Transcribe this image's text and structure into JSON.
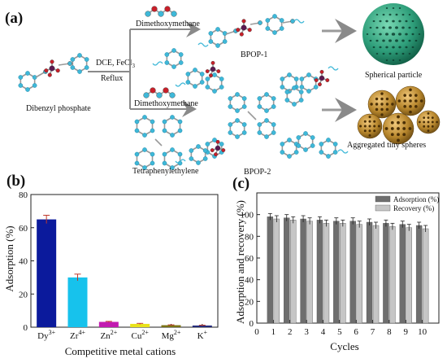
{
  "panels": {
    "a": {
      "label": "(a)",
      "reaction": {
        "reactant": "Dibenzyl phosphate",
        "conditions_line1": "DCE, FeCl",
        "conditions_sub": "3",
        "conditions_line2": "Reflux",
        "reagent_top": "Dimethoxymethane",
        "reagent_bottom": "Dimethoxymethane",
        "linker_bottom": "Tetraphenylethylene",
        "product_top": "BPOP-1",
        "product_bottom": "BPOP-2",
        "morph_top": "Spherical particle",
        "morph_bottom": "Aggregated tiny spheres"
      },
      "colors": {
        "carbon": "#3fb8d8",
        "phosphorus": "#5b1a52",
        "oxygen": "#c8202a",
        "sphere": "#2e9e7a",
        "aggregate": "#b7862c"
      }
    },
    "b": {
      "label": "(b)",
      "chart_data": {
        "type": "bar",
        "categories": [
          "Dy",
          "Zr",
          "Zn",
          "Cu",
          "Mg",
          "K"
        ],
        "category_sup": [
          "3+",
          "4+",
          "2+",
          "2+",
          "2+",
          "+"
        ],
        "values": [
          65,
          30,
          3.2,
          2.0,
          1.2,
          1.0
        ],
        "errors": [
          2.5,
          2.0,
          0.3,
          0.3,
          0.2,
          0.2
        ],
        "colors": [
          "#0b1a9c",
          "#17c2ec",
          "#c21bb0",
          "#e9e21a",
          "#7a7214",
          "#242a7a"
        ],
        "xlabel": "Competitive metal cations",
        "ylabel": "Adsorption (%)",
        "ylim": [
          0,
          80
        ],
        "yticks": [
          0,
          20,
          40,
          60,
          80
        ]
      }
    },
    "c": {
      "label": "(c)",
      "chart_data": {
        "type": "bar",
        "x": [
          1,
          2,
          3,
          4,
          5,
          6,
          7,
          8,
          9,
          10
        ],
        "series": [
          {
            "name": "Adsorption (%)",
            "values": [
              98,
              97,
              96,
              95,
              94,
              94,
              93,
              92,
              91,
              90
            ],
            "errors": [
              3,
              3,
              3,
              3,
              3,
              3,
              3,
              3,
              3,
              3
            ],
            "color": "#6e6e6e"
          },
          {
            "name": "Recovery (%)",
            "values": [
              96,
              95,
              94,
              92,
              92,
              91,
              90,
              89,
              88,
              87
            ],
            "errors": [
              3,
              3,
              3,
              3,
              3,
              3,
              3,
              3,
              3,
              3
            ],
            "color": "#c6c6c6"
          }
        ],
        "xlabel": "Cycles",
        "ylabel": "Adsorption and recovery (%)",
        "ylim": [
          0,
          120
        ],
        "yticks": [
          0,
          20,
          40,
          60,
          80,
          100
        ],
        "xlim": [
          0,
          11
        ],
        "xticks": [
          0,
          1,
          2,
          3,
          4,
          5,
          6,
          7,
          8,
          9,
          10
        ],
        "legend_position": "top-right"
      }
    }
  }
}
